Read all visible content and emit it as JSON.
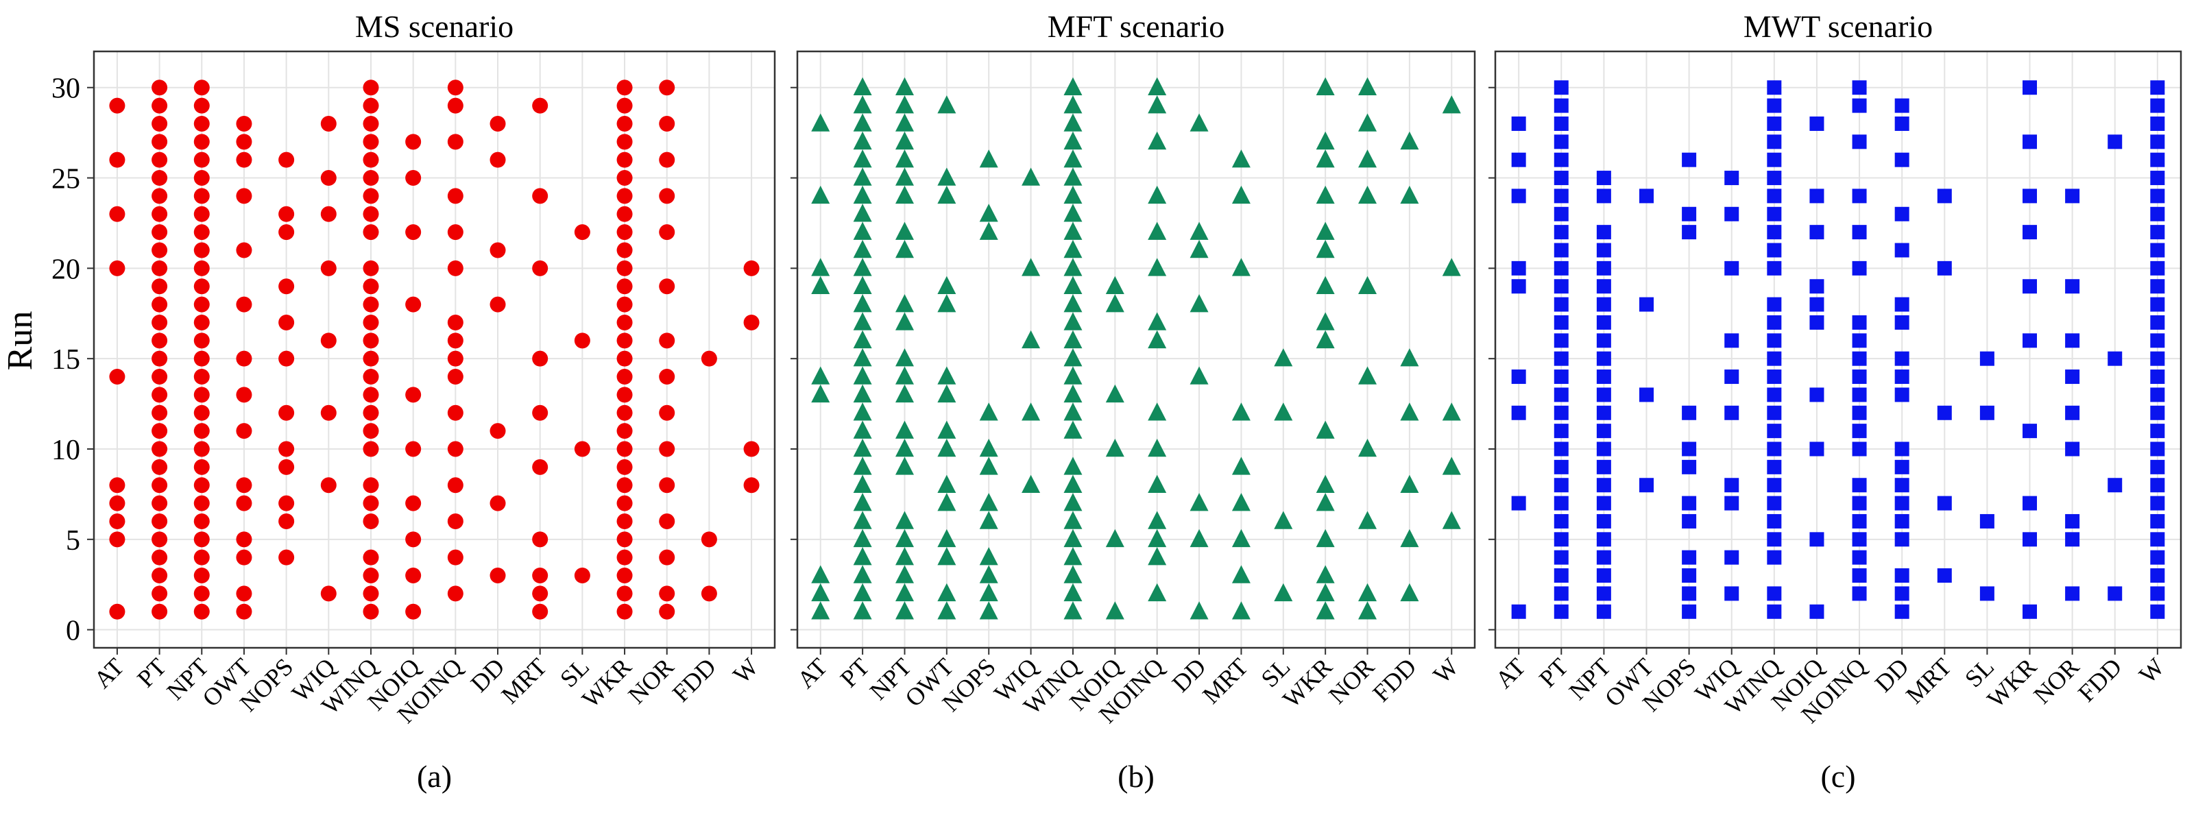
{
  "figure": {
    "ylabel_shared": "Run",
    "yticks": [
      0,
      5,
      10,
      15,
      20,
      25,
      30
    ]
  },
  "chart_data": [
    {
      "type": "scatter",
      "title": "MS scenario",
      "caption": "(a)",
      "ylabel": "Run",
      "ylim": [
        -1,
        32
      ],
      "marker": "circle",
      "color": "#ee0000",
      "categories": [
        "AT",
        "PT",
        "NPT",
        "OWT",
        "NOPS",
        "WIQ",
        "WINQ",
        "NOIQ",
        "NOINQ",
        "DD",
        "MRT",
        "SL",
        "WKR",
        "NOR",
        "FDD",
        "W"
      ],
      "points": {
        "AT": [
          1,
          5,
          6,
          7,
          8,
          14,
          20,
          23,
          26,
          29
        ],
        "PT": [
          1,
          2,
          3,
          4,
          5,
          6,
          7,
          8,
          9,
          10,
          11,
          12,
          13,
          14,
          15,
          16,
          17,
          18,
          19,
          20,
          21,
          22,
          23,
          24,
          25,
          26,
          27,
          28,
          29,
          30
        ],
        "NPT": [
          1,
          2,
          3,
          4,
          5,
          6,
          7,
          8,
          9,
          10,
          11,
          12,
          13,
          14,
          15,
          16,
          17,
          18,
          19,
          20,
          21,
          22,
          23,
          24,
          25,
          26,
          27,
          28,
          29,
          30
        ],
        "OWT": [
          1,
          2,
          4,
          5,
          7,
          8,
          11,
          13,
          15,
          18,
          21,
          24,
          26,
          27,
          28
        ],
        "NOPS": [
          4,
          6,
          7,
          9,
          10,
          12,
          15,
          17,
          19,
          22,
          23,
          26
        ],
        "WIQ": [
          2,
          8,
          12,
          16,
          20,
          23,
          25,
          28
        ],
        "WINQ": [
          1,
          2,
          3,
          4,
          6,
          7,
          8,
          10,
          11,
          12,
          13,
          14,
          15,
          16,
          17,
          18,
          19,
          20,
          22,
          23,
          24,
          25,
          26,
          27,
          28,
          29,
          30
        ],
        "NOIQ": [
          1,
          3,
          5,
          7,
          10,
          13,
          18,
          22,
          25,
          27
        ],
        "NOINQ": [
          2,
          4,
          6,
          8,
          10,
          12,
          14,
          15,
          16,
          17,
          20,
          22,
          24,
          27,
          29,
          30
        ],
        "DD": [
          3,
          7,
          11,
          18,
          21,
          26,
          28
        ],
        "MRT": [
          1,
          2,
          3,
          5,
          9,
          12,
          15,
          20,
          24,
          29
        ],
        "SL": [
          3,
          10,
          16,
          22
        ],
        "WKR": [
          1,
          2,
          3,
          4,
          5,
          6,
          7,
          8,
          9,
          10,
          11,
          12,
          13,
          14,
          15,
          16,
          17,
          18,
          19,
          20,
          21,
          22,
          23,
          24,
          25,
          26,
          27,
          28,
          29,
          30
        ],
        "NOR": [
          1,
          2,
          4,
          6,
          8,
          10,
          12,
          14,
          16,
          19,
          22,
          24,
          26,
          28,
          30
        ],
        "FDD": [
          2,
          5,
          15
        ],
        "W": [
          8,
          10,
          17,
          20
        ]
      }
    },
    {
      "type": "scatter",
      "title": "MFT scenario",
      "caption": "(b)",
      "ylabel": "",
      "ylim": [
        -1,
        32
      ],
      "marker": "triangle",
      "color": "#118a5c",
      "categories": [
        "AT",
        "PT",
        "NPT",
        "OWT",
        "NOPS",
        "WIQ",
        "WINQ",
        "NOIQ",
        "NOINQ",
        "DD",
        "MRT",
        "SL",
        "WKR",
        "NOR",
        "FDD",
        "W"
      ],
      "points": {
        "AT": [
          1,
          2,
          3,
          13,
          14,
          19,
          20,
          24,
          28
        ],
        "PT": [
          1,
          2,
          3,
          4,
          5,
          6,
          7,
          8,
          9,
          10,
          11,
          12,
          13,
          14,
          15,
          16,
          17,
          18,
          19,
          20,
          21,
          22,
          23,
          24,
          25,
          26,
          27,
          28,
          29,
          30
        ],
        "NPT": [
          1,
          2,
          3,
          4,
          5,
          6,
          9,
          10,
          11,
          13,
          14,
          15,
          17,
          18,
          21,
          22,
          24,
          25,
          26,
          27,
          28,
          29,
          30
        ],
        "OWT": [
          1,
          2,
          4,
          5,
          7,
          8,
          10,
          11,
          13,
          14,
          18,
          19,
          24,
          25,
          29
        ],
        "NOPS": [
          1,
          2,
          3,
          4,
          6,
          7,
          9,
          10,
          12,
          22,
          23,
          26
        ],
        "WIQ": [
          8,
          12,
          16,
          20,
          25
        ],
        "WINQ": [
          1,
          2,
          3,
          4,
          5,
          6,
          7,
          8,
          9,
          11,
          12,
          13,
          14,
          15,
          16,
          17,
          18,
          19,
          20,
          21,
          22,
          23,
          24,
          25,
          26,
          27,
          28,
          29,
          30
        ],
        "NOIQ": [
          1,
          5,
          10,
          13,
          18,
          19
        ],
        "NOINQ": [
          2,
          4,
          5,
          6,
          8,
          10,
          12,
          16,
          17,
          20,
          22,
          24,
          27,
          29,
          30
        ],
        "DD": [
          1,
          5,
          7,
          14,
          18,
          21,
          22,
          28
        ],
        "MRT": [
          1,
          3,
          5,
          7,
          9,
          12,
          20,
          24,
          26
        ],
        "SL": [
          2,
          6,
          12,
          15
        ],
        "WKR": [
          1,
          2,
          3,
          5,
          7,
          8,
          11,
          16,
          17,
          19,
          21,
          22,
          24,
          26,
          27,
          30
        ],
        "NOR": [
          1,
          2,
          6,
          10,
          14,
          19,
          24,
          26,
          28,
          30
        ],
        "FDD": [
          2,
          5,
          8,
          12,
          15,
          24,
          27
        ],
        "W": [
          6,
          9,
          12,
          20,
          29
        ]
      }
    },
    {
      "type": "scatter",
      "title": "MWT scenario",
      "caption": "(c)",
      "ylabel": "",
      "ylim": [
        -1,
        32
      ],
      "marker": "square",
      "color": "#0a14ee",
      "categories": [
        "AT",
        "PT",
        "NPT",
        "OWT",
        "NOPS",
        "WIQ",
        "WINQ",
        "NOIQ",
        "NOINQ",
        "DD",
        "MRT",
        "SL",
        "WKR",
        "NOR",
        "FDD",
        "W"
      ],
      "points": {
        "AT": [
          1,
          7,
          12,
          14,
          19,
          20,
          24,
          26,
          28
        ],
        "PT": [
          1,
          2,
          3,
          4,
          5,
          6,
          7,
          8,
          9,
          10,
          11,
          12,
          13,
          14,
          15,
          16,
          17,
          18,
          19,
          20,
          21,
          22,
          23,
          24,
          25,
          26,
          27,
          28,
          29,
          30
        ],
        "NPT": [
          1,
          2,
          3,
          4,
          5,
          6,
          7,
          8,
          9,
          10,
          11,
          12,
          13,
          14,
          15,
          16,
          17,
          18,
          19,
          20,
          21,
          22,
          24,
          25
        ],
        "OWT": [
          8,
          13,
          18,
          24
        ],
        "NOPS": [
          1,
          2,
          3,
          4,
          6,
          7,
          9,
          10,
          12,
          22,
          23,
          26
        ],
        "WIQ": [
          2,
          4,
          7,
          8,
          12,
          14,
          16,
          20,
          23,
          25
        ],
        "WINQ": [
          1,
          2,
          4,
          5,
          6,
          7,
          8,
          9,
          10,
          11,
          12,
          13,
          14,
          15,
          16,
          17,
          18,
          20,
          21,
          22,
          23,
          24,
          25,
          26,
          27,
          28,
          29,
          30
        ],
        "NOIQ": [
          1,
          5,
          10,
          13,
          17,
          18,
          19,
          22,
          24,
          28
        ],
        "NOINQ": [
          2,
          3,
          4,
          5,
          6,
          7,
          8,
          10,
          11,
          12,
          13,
          14,
          15,
          16,
          17,
          20,
          22,
          24,
          27,
          29,
          30
        ],
        "DD": [
          1,
          2,
          3,
          5,
          6,
          7,
          8,
          9,
          10,
          13,
          14,
          15,
          17,
          18,
          21,
          23,
          26,
          28,
          29
        ],
        "MRT": [
          3,
          7,
          12,
          20,
          24
        ],
        "SL": [
          2,
          6,
          12,
          15
        ],
        "WKR": [
          1,
          5,
          7,
          11,
          16,
          19,
          22,
          24,
          27,
          30
        ],
        "NOR": [
          2,
          5,
          6,
          10,
          12,
          14,
          16,
          19,
          24
        ],
        "FDD": [
          2,
          8,
          15,
          27
        ],
        "W": [
          1,
          2,
          3,
          4,
          5,
          6,
          7,
          8,
          9,
          10,
          11,
          12,
          13,
          14,
          15,
          16,
          17,
          18,
          19,
          20,
          21,
          22,
          23,
          24,
          25,
          26,
          27,
          28,
          29,
          30
        ]
      }
    }
  ]
}
